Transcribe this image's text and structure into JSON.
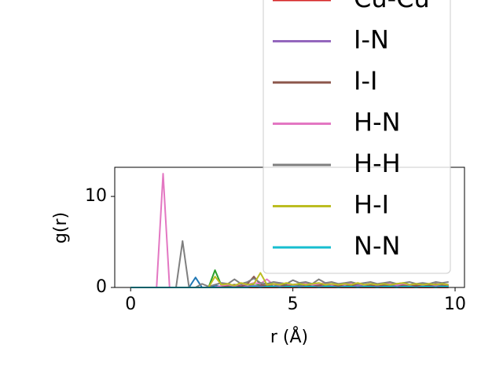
{
  "chart_data": {
    "type": "line",
    "xlabel": "r (Å)",
    "ylabel": "g(r)",
    "xlim": [
      -0.49,
      10.29
    ],
    "ylim": [
      0,
      13.2
    ],
    "xticks": [
      0,
      5,
      10
    ],
    "yticks": [
      0,
      10
    ],
    "legend": "upper right",
    "x": [
      0,
      0.2,
      0.4,
      0.6,
      0.8,
      1.0,
      1.2,
      1.4,
      1.6,
      1.8,
      2.0,
      2.2,
      2.4,
      2.6,
      2.8,
      3.0,
      3.2,
      3.4,
      3.6,
      3.8,
      4.0,
      4.2,
      4.4,
      4.6,
      4.8,
      5.0,
      5.2,
      5.4,
      5.6,
      5.8,
      6.0,
      6.2,
      6.4,
      6.6,
      6.8,
      7.0,
      7.2,
      7.4,
      7.6,
      7.8,
      8.0,
      8.2,
      8.4,
      8.6,
      8.8,
      9.0,
      9.2,
      9.4,
      9.6,
      9.8
    ],
    "series": [
      {
        "color": "#1f77b4",
        "values": [
          0,
          0,
          0,
          0,
          0,
          0,
          0,
          0,
          0,
          0,
          1.1,
          0,
          0,
          0.2,
          0.1,
          0.3,
          0.2,
          0.1,
          0.3,
          0.2,
          0.2,
          0.1,
          0.3,
          0.2,
          0.2,
          0.3,
          0.1,
          0.2,
          0.2,
          0.3,
          0.2,
          0.1,
          0.2,
          0.3,
          0.2,
          0.2,
          0.1,
          0.3,
          0.2,
          0.2,
          0.1,
          0.2,
          0.3,
          0.2,
          0.1,
          0.2,
          0.2,
          0.3,
          0.2,
          0.2
        ]
      },
      {
        "color": "#2ca02c",
        "values": [
          0,
          0,
          0,
          0,
          0,
          0,
          0,
          0,
          0,
          0,
          0,
          0,
          0,
          1.9,
          0.2,
          0.1,
          0.3,
          0.2,
          0.4,
          0.2,
          0.3,
          0.2,
          0.3,
          0.2,
          0.3,
          0.2,
          0.3,
          0.2,
          0.2,
          0.3,
          0.2,
          0.3,
          0.2,
          0.2,
          0.3,
          0.2,
          0.3,
          0.2,
          0.2,
          0.3,
          0.2,
          0.2,
          0.3,
          0.2,
          0.2,
          0.3,
          0.2,
          0.2,
          0.3,
          0.2
        ]
      },
      {
        "name": "Cu-Cu",
        "color": "#d62728",
        "values": [
          0,
          0,
          0,
          0,
          0,
          0,
          0,
          0,
          0,
          0,
          0,
          0,
          0,
          0,
          0,
          0,
          0,
          0,
          0,
          0,
          0,
          0,
          0,
          0,
          0,
          0,
          0,
          0,
          0,
          0,
          0,
          0,
          0,
          0,
          0,
          0,
          0,
          0,
          0,
          0,
          0,
          0,
          0,
          0,
          0,
          0,
          0,
          0,
          0,
          0
        ]
      },
      {
        "name": "I-N",
        "color": "#9467bd",
        "values": [
          0,
          0,
          0,
          0,
          0,
          0,
          0,
          0,
          0,
          0,
          0,
          0,
          0,
          0,
          0,
          0,
          0.1,
          0.2,
          0.1,
          0.2,
          0.1,
          0.2,
          0.1,
          0.2,
          0.1,
          0.2,
          0.1,
          0.2,
          0.1,
          0.2,
          0.1,
          0.2,
          0.1,
          0.2,
          0.1,
          0.2,
          0.1,
          0.2,
          0.1,
          0.2,
          0.1,
          0.2,
          0.1,
          0.2,
          0.1,
          0.2,
          0.1,
          0.2,
          0.1,
          0.2
        ]
      },
      {
        "name": "I-I",
        "color": "#8c564b",
        "values": [
          0,
          0,
          0,
          0,
          0,
          0,
          0,
          0,
          0,
          0,
          0,
          0,
          0,
          0,
          0,
          0.2,
          0.3,
          0.1,
          0.4,
          1.2,
          0.3,
          0.2,
          0.4,
          0.3,
          0.2,
          0.3,
          0.4,
          0.2,
          0.3,
          0.2,
          0.4,
          0.3,
          0.2,
          0.3,
          0.2,
          0.4,
          0.3,
          0.2,
          0.3,
          0.2,
          0.3,
          0.4,
          0.2,
          0.3,
          0.2,
          0.3,
          0.2,
          0.4,
          0.3,
          0.2
        ]
      },
      {
        "name": "H-N",
        "color": "#e377c2",
        "values": [
          0,
          0,
          0,
          0,
          0,
          12.5,
          0,
          0,
          0,
          0,
          0,
          0,
          0,
          0,
          0.2,
          0.3,
          0.2,
          0.4,
          0.3,
          0.5,
          0.4,
          0.9,
          0.3,
          0.5,
          0.4,
          0.3,
          0.4,
          0.5,
          0.3,
          0.4,
          0.5,
          0.3,
          0.4,
          0.3,
          0.5,
          0.4,
          0.3,
          0.4,
          0.3,
          0.4,
          0.5,
          0.3,
          0.4,
          0.3,
          0.4,
          0.3,
          0.4,
          0.3,
          0.4,
          0.3
        ]
      },
      {
        "name": "H-H",
        "color": "#7f7f7f",
        "values": [
          0,
          0,
          0,
          0,
          0,
          0,
          0,
          0,
          5.1,
          0,
          0,
          0.4,
          0.1,
          0.3,
          0.5,
          0.4,
          0.9,
          0.4,
          0.6,
          1.0,
          0.5,
          0.4,
          0.6,
          0.5,
          0.4,
          0.8,
          0.5,
          0.6,
          0.4,
          0.9,
          0.5,
          0.6,
          0.4,
          0.5,
          0.6,
          0.4,
          0.5,
          0.6,
          0.4,
          0.5,
          0.6,
          0.4,
          0.5,
          0.6,
          0.4,
          0.5,
          0.4,
          0.6,
          0.5,
          0.6
        ]
      },
      {
        "name": "H-I",
        "color": "#bcbd22",
        "values": [
          0,
          0,
          0,
          0,
          0,
          0,
          0,
          0,
          0,
          0,
          0,
          0,
          0,
          1.2,
          0.3,
          0.4,
          0.2,
          0.5,
          0.3,
          0.4,
          1.6,
          0.3,
          0.4,
          0.3,
          0.5,
          0.3,
          0.4,
          0.3,
          0.4,
          0.5,
          0.3,
          0.4,
          0.3,
          0.4,
          0.3,
          0.5,
          0.3,
          0.4,
          0.3,
          0.4,
          0.3,
          0.4,
          0.5,
          0.3,
          0.4,
          0.3,
          0.4,
          0.3,
          0.4,
          0.3
        ]
      },
      {
        "name": "N-N",
        "color": "#17becf",
        "values": [
          0,
          0,
          0,
          0,
          0,
          0,
          0,
          0,
          0,
          0,
          0,
          0,
          0,
          0,
          0,
          0,
          0,
          0,
          0,
          0.1,
          0,
          0.1,
          0.1,
          0,
          0.1,
          0.1,
          0,
          0.1,
          0.1,
          0,
          0.1,
          0.1,
          0,
          0.1,
          0.1,
          0,
          0.1,
          0.1,
          0,
          0.1,
          0.1,
          0,
          0.1,
          0.1,
          0,
          0.1,
          0.1,
          0,
          0.1,
          0.1
        ]
      }
    ]
  }
}
